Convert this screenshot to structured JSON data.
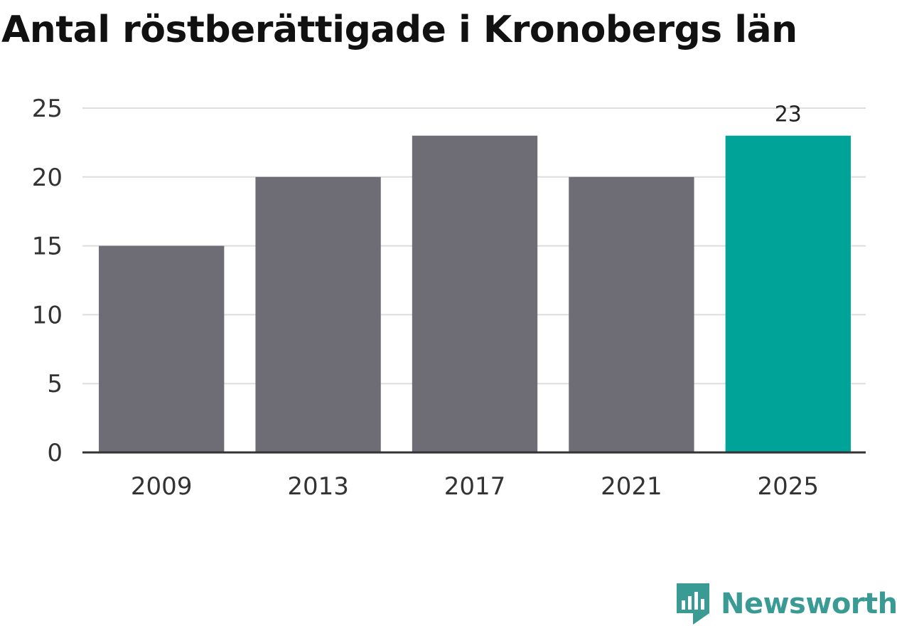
{
  "chart_data": {
    "type": "bar",
    "title": "Antal röstberättigade i Kronobergs län",
    "categories": [
      "2009",
      "2013",
      "2017",
      "2021",
      "2025"
    ],
    "values": [
      15,
      20,
      23,
      20,
      23
    ],
    "highlight_index": 4,
    "value_labels": [
      null,
      null,
      null,
      null,
      "23"
    ],
    "ylim": [
      0,
      25
    ],
    "yticks": [
      "0",
      "5",
      "10",
      "15",
      "20",
      "25"
    ],
    "xlabel": "",
    "ylabel": "",
    "grid": true,
    "colors": {
      "bar": "#6e6d75",
      "highlight": "#00a398",
      "grid": "#dddddd",
      "axis": "#333333"
    }
  },
  "brand": {
    "name": "Newsworthy",
    "logo_icon": "newsworthy-logo-icon",
    "color": "#3a9a94"
  }
}
